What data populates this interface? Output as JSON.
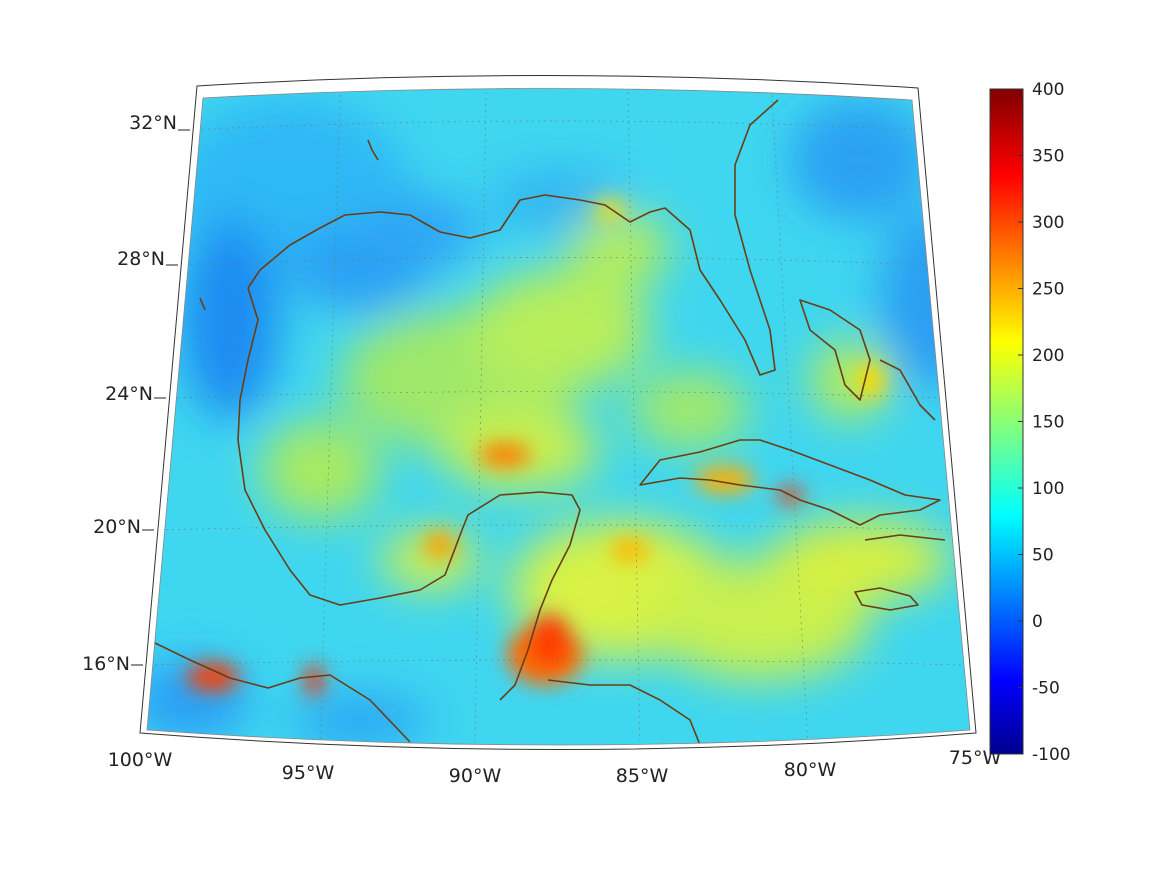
{
  "lat_labels": [
    "32°N",
    "28°N",
    "24°N",
    "20°N",
    "16°N"
  ],
  "lon_labels": [
    "100°W",
    "95°W",
    "90°W",
    "85°W",
    "80°W",
    "75°W"
  ],
  "colorbar": {
    "ticks": [
      "400",
      "350",
      "300",
      "250",
      "200",
      "150",
      "100",
      "50",
      "0",
      "-50",
      "-100"
    ],
    "min": -100,
    "max": 400,
    "colormap": "jet"
  },
  "map": {
    "lon_range": [
      -100,
      -75
    ],
    "lat_range": [
      14,
      33
    ],
    "projection": "conic",
    "coastline_color": "#6b3d14",
    "background_value": 100
  }
}
